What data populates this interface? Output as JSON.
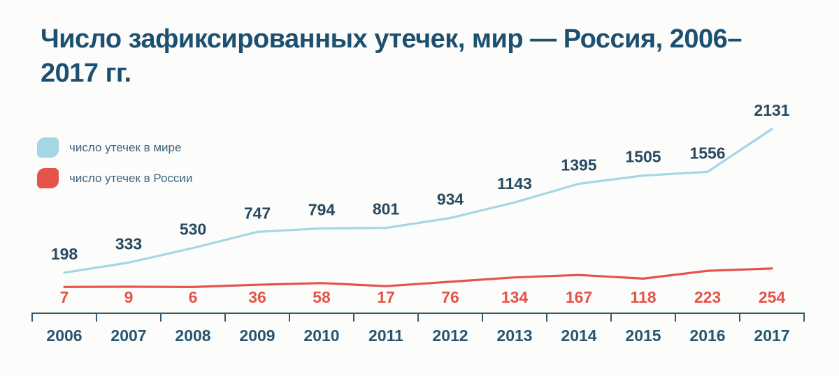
{
  "title": "Число зафиксированных утечек, мир — Россия, 2006–2017 гг.",
  "legend": {
    "items": [
      {
        "label": "число утечек в мире",
        "color": "#a5d6e4"
      },
      {
        "label": "число утечек в России",
        "color": "#e4544a"
      }
    ]
  },
  "colors": {
    "background": "#fcfcfb",
    "title_text": "#1d5070",
    "legend_text": "#3e647f",
    "axis": "#33596e",
    "year_labels": "#275672"
  },
  "chart_data": {
    "type": "line",
    "title": "Число зафиксированных утечек, мир — Россия, 2006–2017 гг.",
    "categories": [
      "2006",
      "2007",
      "2008",
      "2009",
      "2010",
      "2011",
      "2012",
      "2013",
      "2014",
      "2015",
      "2016",
      "2017"
    ],
    "series": [
      {
        "name": "число утечек в мире",
        "color": "#a5d6e4",
        "label_color": "#274a61",
        "label_position": "above-point",
        "values": [
          198,
          333,
          530,
          747,
          794,
          801,
          934,
          1143,
          1395,
          1505,
          1556,
          2131
        ]
      },
      {
        "name": "число утечек в России",
        "color": "#e4544a",
        "label_color": "#e4544a",
        "label_position": "fixed-row-below",
        "values": [
          7,
          9,
          6,
          36,
          58,
          17,
          76,
          134,
          167,
          118,
          223,
          254
        ]
      }
    ],
    "xlabel": "",
    "ylabel": "",
    "ylim": [
      0,
      2131
    ],
    "grid": false,
    "y_axis_shown": false,
    "legend_position": "top-left",
    "x_axis_style": "ticks-between-year-cells"
  }
}
